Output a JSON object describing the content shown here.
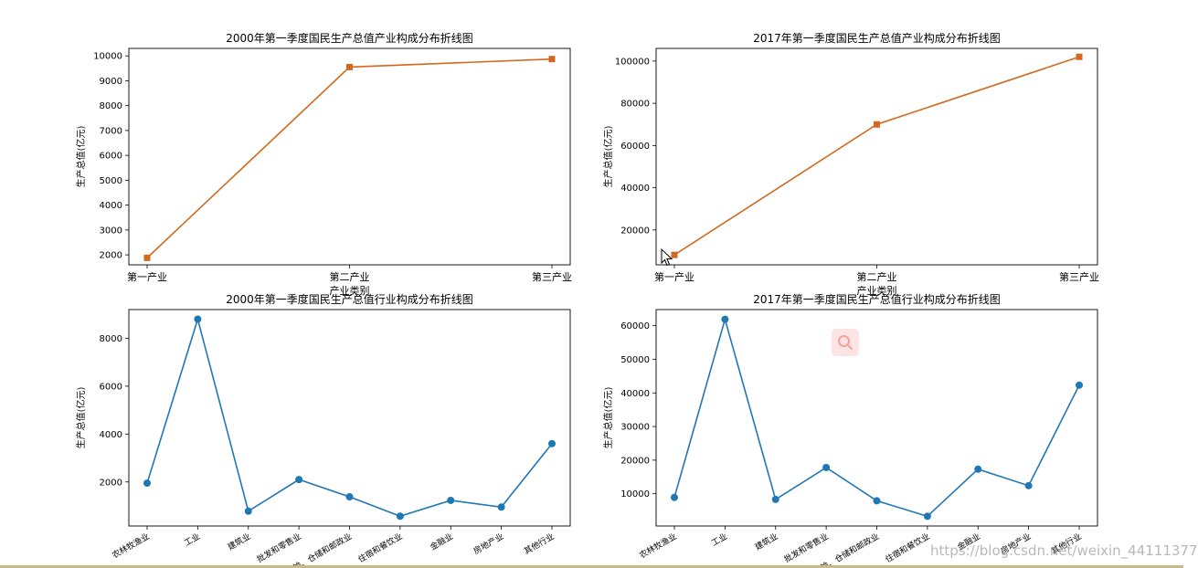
{
  "chart_data": [
    {
      "type": "line",
      "title": "2000年第一季度国民生产总值产业构成分布折线图",
      "xlabel": "产业类别",
      "ylabel": "生产总值(亿元)",
      "categories": [
        "第一产业",
        "第二产业",
        "第三产业"
      ],
      "series": [
        {
          "values": [
            1880,
            9550,
            9870
          ]
        }
      ],
      "ylim": [
        1600,
        10300
      ],
      "yticks": [
        2000,
        3000,
        4000,
        5000,
        6000,
        7000,
        8000,
        9000,
        10000
      ],
      "marker": "square",
      "color": "#d2691e",
      "grid": false
    },
    {
      "type": "line",
      "title": "2017年第一季度国民生产总值产业构成分布折线图",
      "xlabel": "产业类别",
      "ylabel": "生产总值(亿元)",
      "categories": [
        "第一产业",
        "第二产业",
        "第三产业"
      ],
      "series": [
        {
          "values": [
            8200,
            70000,
            102000
          ]
        }
      ],
      "ylim": [
        3500,
        106000
      ],
      "yticks": [
        20000,
        40000,
        60000,
        80000,
        100000
      ],
      "marker": "square",
      "color": "#d2691e",
      "grid": false
    },
    {
      "type": "line",
      "title": "2000年第一季度国民生产总值行业构成分布折线图",
      "xlabel": "",
      "ylabel": "生产总值(亿元)",
      "categories": [
        "农林牧渔业",
        "工业",
        "建筑业",
        "批发和零售业",
        "交通运输、仓储和邮政业",
        "住宿和餐饮业",
        "金融业",
        "房地产业",
        "其他行业"
      ],
      "series": [
        {
          "values": [
            1950,
            8800,
            780,
            2100,
            1380,
            570,
            1230,
            950,
            3600
          ]
        }
      ],
      "ylim": [
        160,
        9200
      ],
      "yticks": [
        2000,
        4000,
        6000,
        8000
      ],
      "marker": "circle",
      "color": "#1f77b4",
      "grid": false
    },
    {
      "type": "line",
      "title": "2017年第一季度国民生产总值行业构成分布折线图",
      "xlabel": "",
      "ylabel": "生产总值(亿元)",
      "categories": [
        "农林牧渔业",
        "工业",
        "建筑业",
        "批发和零售业",
        "交通运输、仓储和邮政业",
        "住宿和餐饮业",
        "金融业",
        "房地产业",
        "其他行业"
      ],
      "series": [
        {
          "values": [
            8900,
            61900,
            8300,
            17800,
            7900,
            3300,
            17300,
            12400,
            42300
          ]
        }
      ],
      "ylim": [
        400,
        64800
      ],
      "yticks": [
        10000,
        20000,
        30000,
        40000,
        50000,
        60000
      ],
      "marker": "circle",
      "color": "#1f77b4",
      "grid": false
    }
  ],
  "overlay": {
    "watermark": "https://blog.csdn.net/weixin_44111377",
    "badge_icon": "search-icon",
    "cursor_icon": "mouse-pointer-icon"
  }
}
